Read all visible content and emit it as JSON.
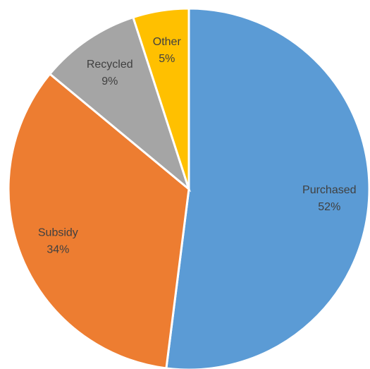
{
  "chart_data": {
    "type": "pie",
    "categories": [
      "Purchased",
      "Subsidy",
      "Recycled",
      "Other"
    ],
    "values": [
      52,
      34,
      9,
      5
    ],
    "value_labels": [
      "52%",
      "34%",
      "9%",
      "5%"
    ],
    "colors": [
      "#5b9bd5",
      "#ed7d31",
      "#a5a5a5",
      "#ffc000"
    ]
  }
}
